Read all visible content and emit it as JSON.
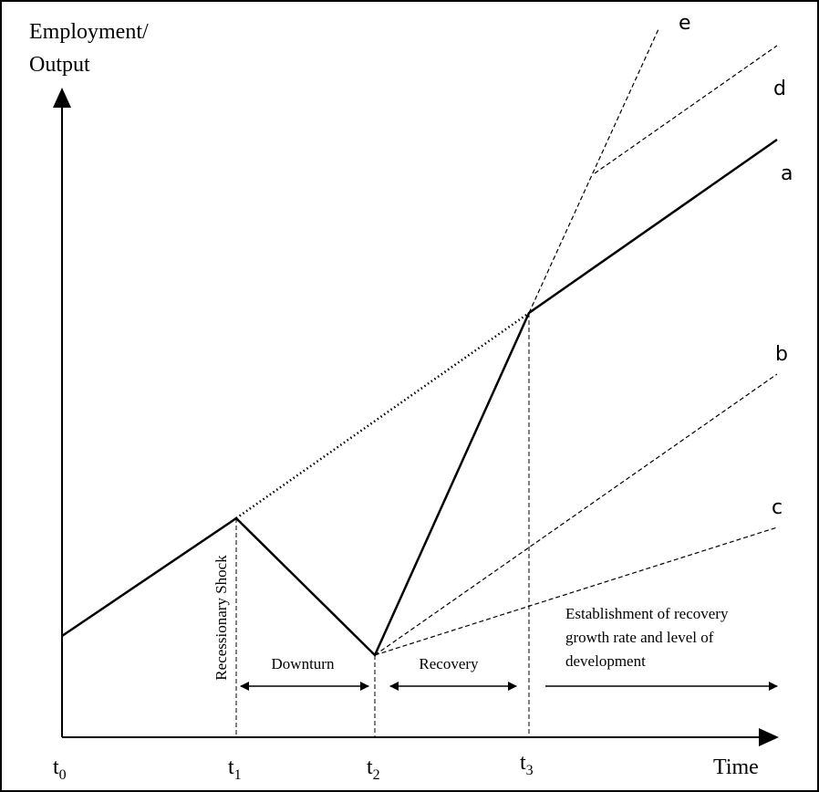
{
  "axes": {
    "y_label": [
      "Employment/",
      "Output"
    ],
    "x_label": "Time"
  },
  "time_points": [
    {
      "base": "t",
      "sub": "0"
    },
    {
      "base": "t",
      "sub": "1"
    },
    {
      "base": "t",
      "sub": "2"
    },
    {
      "base": "t",
      "sub": "3"
    }
  ],
  "paths": [
    "a",
    "b",
    "c",
    "d",
    "e"
  ],
  "phases": {
    "shock": "Recessionary Shock",
    "downturn": "Downturn",
    "recovery": "Recovery",
    "establishment": [
      "Establishment of recovery",
      "growth rate and level of",
      "development"
    ]
  }
}
